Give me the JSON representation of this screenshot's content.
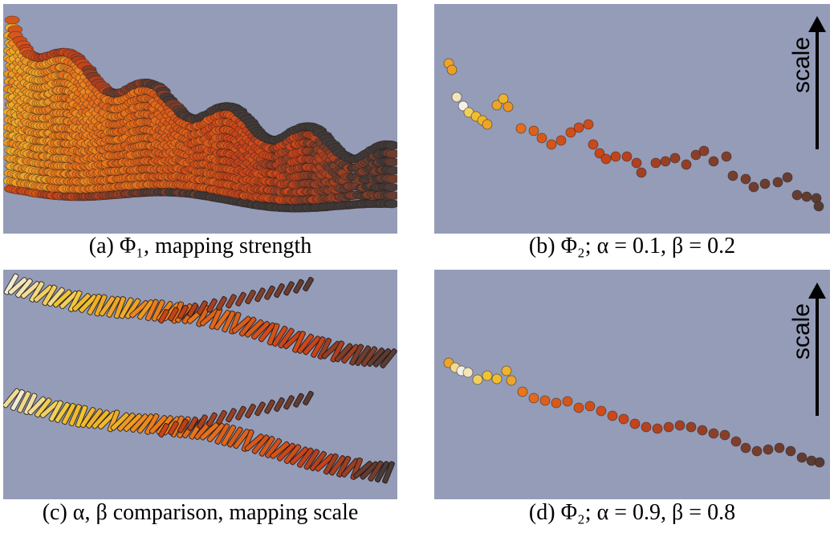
{
  "captions": {
    "a": "(a) Φ₁, mapping strength",
    "b": "(b) Φ₂; α = 0.1, β = 0.2",
    "c": "(c) α, β comparison, mapping scale",
    "d": "(d) Φ₂; α = 0.9, β = 0.8"
  },
  "scale_label": "scale",
  "colors": {
    "panel_background": "#949cb8",
    "glyph_bright": "#f3f0e6",
    "glyph_yellow": "#f0c431",
    "glyph_orange": "#e8761c",
    "glyph_red": "#c8431a",
    "glyph_dark": "#403a38"
  }
}
